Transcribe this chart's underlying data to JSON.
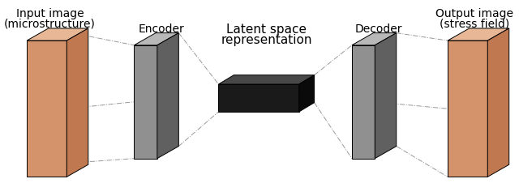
{
  "bg_color": "#ffffff",
  "input_label_line1": "Input image",
  "input_label_line2": "(microstructure)",
  "output_label_line1": "Output image",
  "output_label_line2": "(stress field)",
  "encoder_label": "Encoder",
  "decoder_label": "Decoder",
  "latent_label_line1": "Latent space",
  "latent_label_line2": "representation",
  "slab_face_color": "#D4936A",
  "slab_top_color": "#E8B896",
  "slab_side_color": "#C07850",
  "enc_face_color": "#909090",
  "enc_top_color": "#B8B8B8",
  "enc_side_color": "#606060",
  "lat_face_color": "#1A1A1A",
  "lat_top_color": "#484848",
  "lat_side_color": "#0A0A0A",
  "line_color": "#999999",
  "label_fontsize": 10,
  "latent_fontsize": 11
}
